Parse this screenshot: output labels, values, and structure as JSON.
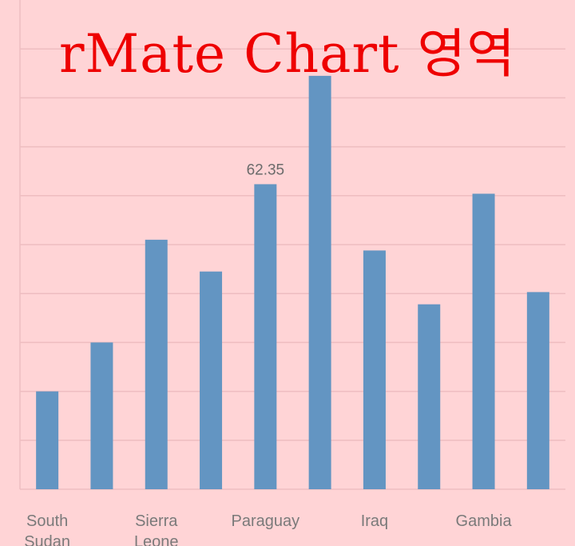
{
  "chart_data": {
    "type": "bar",
    "categories": [
      "South Sudan",
      "",
      "Sierra Leone",
      "",
      "Paraguay",
      "",
      "Iraq",
      "",
      "Gambia",
      ""
    ],
    "series": [
      {
        "values": [
          20,
          30,
          51,
          44.5,
          62.35,
          84.5,
          48.8,
          37.8,
          60.4,
          40.3
        ]
      }
    ],
    "data_labels": [
      null,
      null,
      null,
      null,
      "62.35",
      null,
      null,
      null,
      null,
      null
    ],
    "ylim": [
      0,
      100
    ],
    "grid": true,
    "colors": {
      "bar": "#6395c2",
      "grid": "#eebdc0",
      "tick_label": "#7a7a7a",
      "data_label": "#6b6b6b",
      "background": "#ffd4d6"
    }
  },
  "watermark": "rMate Chart 영역"
}
